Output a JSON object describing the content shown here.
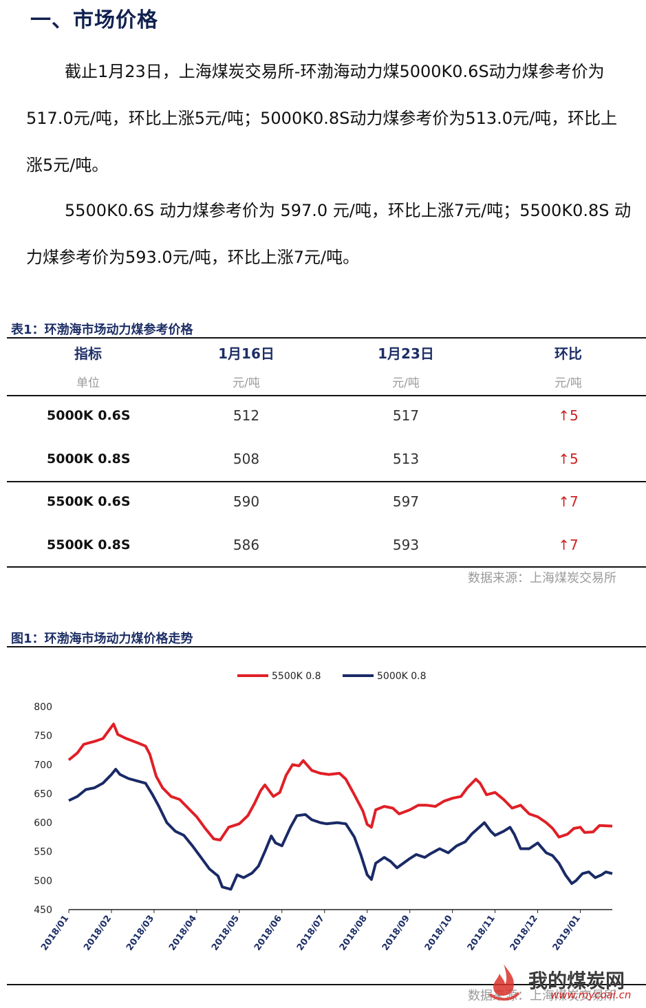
{
  "section_title": "一、市场价格",
  "para1": "截止1月23日，上海煤炭交易所-环渤海动力煤5000K0.6S动力煤参考价为517.0元/吨，环比上涨5元/吨；5000K0.8S动力煤参考价为513.0元/吨，环比上涨5元/吨。",
  "para2": "5500K0.6S 动力煤参考价为 597.0 元/吨，环比上涨7元/吨；5500K0.8S 动力煤参考价为593.0元/吨，环比上涨7元/吨。",
  "table": {
    "caption": "表1：环渤海市场动力煤参考价格",
    "headers": [
      "指标",
      "1月16日",
      "1月23日",
      "环比"
    ],
    "units": [
      "单位",
      "元/吨",
      "元/吨",
      "元/吨"
    ],
    "rows": [
      {
        "label": "5000K 0.6S",
        "prev": "512",
        "curr": "517",
        "change": "↑5"
      },
      {
        "label": "5000K 0.8S",
        "prev": "508",
        "curr": "513",
        "change": "↑5"
      },
      {
        "label": "5500K 0.6S",
        "prev": "590",
        "curr": "597",
        "change": "↑7"
      },
      {
        "label": "5500K 0.8S",
        "prev": "586",
        "curr": "593",
        "change": "↑7"
      }
    ],
    "source": "数据来源：上海煤炭交易所"
  },
  "figure": {
    "caption": "图1：环渤海市场动力煤价格走势",
    "source": "数据来源：上海煤炭交易所"
  },
  "watermark": {
    "text": "我的煤炭网",
    "url": "www.mycoal.cn"
  },
  "chart_data": {
    "type": "line",
    "title": "",
    "xlabel": "",
    "ylabel": "",
    "ylim": [
      450,
      800
    ],
    "yticks": [
      450,
      500,
      550,
      600,
      650,
      700,
      750,
      800
    ],
    "xticks": [
      "2018/01",
      "2018/02",
      "2018/03",
      "2018/04",
      "2018/05",
      "2018/06",
      "2018/07",
      "2018/08",
      "2018/09",
      "2018/10",
      "2018/11",
      "2018/12",
      "2019/01"
    ],
    "x_range": [
      0,
      12.75
    ],
    "grid": false,
    "legend": "top-center",
    "series": [
      {
        "name": "5500K 0.8",
        "color": "#e01f26",
        "points": [
          [
            0,
            708
          ],
          [
            0.2,
            720
          ],
          [
            0.35,
            735
          ],
          [
            0.6,
            740
          ],
          [
            0.8,
            745
          ],
          [
            0.95,
            760
          ],
          [
            1.05,
            770
          ],
          [
            1.15,
            752
          ],
          [
            1.35,
            745
          ],
          [
            1.6,
            738
          ],
          [
            1.8,
            732
          ],
          [
            1.9,
            718
          ],
          [
            2.05,
            680
          ],
          [
            2.2,
            660
          ],
          [
            2.4,
            645
          ],
          [
            2.6,
            640
          ],
          [
            2.8,
            625
          ],
          [
            3.0,
            610
          ],
          [
            3.2,
            590
          ],
          [
            3.4,
            572
          ],
          [
            3.55,
            570
          ],
          [
            3.75,
            592
          ],
          [
            4.0,
            598
          ],
          [
            4.2,
            612
          ],
          [
            4.35,
            632
          ],
          [
            4.5,
            655
          ],
          [
            4.6,
            665
          ],
          [
            4.8,
            645
          ],
          [
            4.95,
            652
          ],
          [
            5.1,
            682
          ],
          [
            5.25,
            700
          ],
          [
            5.4,
            698
          ],
          [
            5.5,
            707
          ],
          [
            5.7,
            690
          ],
          [
            5.9,
            685
          ],
          [
            6.1,
            683
          ],
          [
            6.35,
            685
          ],
          [
            6.5,
            675
          ],
          [
            6.7,
            648
          ],
          [
            6.9,
            620
          ],
          [
            7.0,
            597
          ],
          [
            7.1,
            592
          ],
          [
            7.2,
            622
          ],
          [
            7.4,
            628
          ],
          [
            7.6,
            625
          ],
          [
            7.75,
            615
          ],
          [
            8.0,
            622
          ],
          [
            8.2,
            630
          ],
          [
            8.4,
            630
          ],
          [
            8.6,
            628
          ],
          [
            8.8,
            637
          ],
          [
            9.0,
            642
          ],
          [
            9.2,
            645
          ],
          [
            9.35,
            660
          ],
          [
            9.55,
            675
          ],
          [
            9.65,
            668
          ],
          [
            9.8,
            648
          ],
          [
            10.0,
            652
          ],
          [
            10.2,
            640
          ],
          [
            10.4,
            625
          ],
          [
            10.6,
            630
          ],
          [
            10.8,
            615
          ],
          [
            11.0,
            610
          ],
          [
            11.2,
            600
          ],
          [
            11.35,
            590
          ],
          [
            11.5,
            575
          ],
          [
            11.7,
            580
          ],
          [
            11.85,
            590
          ],
          [
            12.0,
            592
          ],
          [
            12.1,
            583
          ],
          [
            12.3,
            584
          ],
          [
            12.45,
            595
          ],
          [
            12.75,
            594
          ]
        ]
      },
      {
        "name": "5000K 0.8",
        "color": "#1a2a66",
        "points": [
          [
            0,
            638
          ],
          [
            0.2,
            645
          ],
          [
            0.4,
            657
          ],
          [
            0.6,
            660
          ],
          [
            0.8,
            668
          ],
          [
            1.0,
            683
          ],
          [
            1.1,
            692
          ],
          [
            1.2,
            683
          ],
          [
            1.4,
            676
          ],
          [
            1.6,
            672
          ],
          [
            1.8,
            668
          ],
          [
            1.95,
            650
          ],
          [
            2.1,
            630
          ],
          [
            2.3,
            600
          ],
          [
            2.5,
            585
          ],
          [
            2.7,
            578
          ],
          [
            2.9,
            560
          ],
          [
            3.1,
            540
          ],
          [
            3.3,
            520
          ],
          [
            3.5,
            508
          ],
          [
            3.6,
            489
          ],
          [
            3.8,
            485
          ],
          [
            3.95,
            510
          ],
          [
            4.1,
            505
          ],
          [
            4.3,
            513
          ],
          [
            4.45,
            525
          ],
          [
            4.6,
            550
          ],
          [
            4.75,
            577
          ],
          [
            4.85,
            565
          ],
          [
            5.0,
            560
          ],
          [
            5.2,
            592
          ],
          [
            5.35,
            612
          ],
          [
            5.55,
            614
          ],
          [
            5.7,
            605
          ],
          [
            5.9,
            600
          ],
          [
            6.05,
            598
          ],
          [
            6.3,
            600
          ],
          [
            6.5,
            598
          ],
          [
            6.7,
            575
          ],
          [
            6.85,
            545
          ],
          [
            7.0,
            510
          ],
          [
            7.1,
            502
          ],
          [
            7.2,
            530
          ],
          [
            7.4,
            540
          ],
          [
            7.55,
            533
          ],
          [
            7.7,
            522
          ],
          [
            8.0,
            538
          ],
          [
            8.15,
            545
          ],
          [
            8.35,
            540
          ],
          [
            8.5,
            547
          ],
          [
            8.7,
            555
          ],
          [
            8.9,
            548
          ],
          [
            9.1,
            560
          ],
          [
            9.3,
            567
          ],
          [
            9.45,
            580
          ],
          [
            9.6,
            590
          ],
          [
            9.75,
            600
          ],
          [
            9.9,
            585
          ],
          [
            10.0,
            578
          ],
          [
            10.2,
            585
          ],
          [
            10.35,
            592
          ],
          [
            10.45,
            580
          ],
          [
            10.6,
            555
          ],
          [
            10.8,
            555
          ],
          [
            11.0,
            565
          ],
          [
            11.2,
            548
          ],
          [
            11.35,
            543
          ],
          [
            11.5,
            530
          ],
          [
            11.65,
            510
          ],
          [
            11.8,
            495
          ],
          [
            11.9,
            500
          ],
          [
            12.05,
            512
          ],
          [
            12.2,
            515
          ],
          [
            12.35,
            505
          ],
          [
            12.5,
            510
          ],
          [
            12.6,
            515
          ],
          [
            12.75,
            512
          ]
        ]
      }
    ]
  }
}
